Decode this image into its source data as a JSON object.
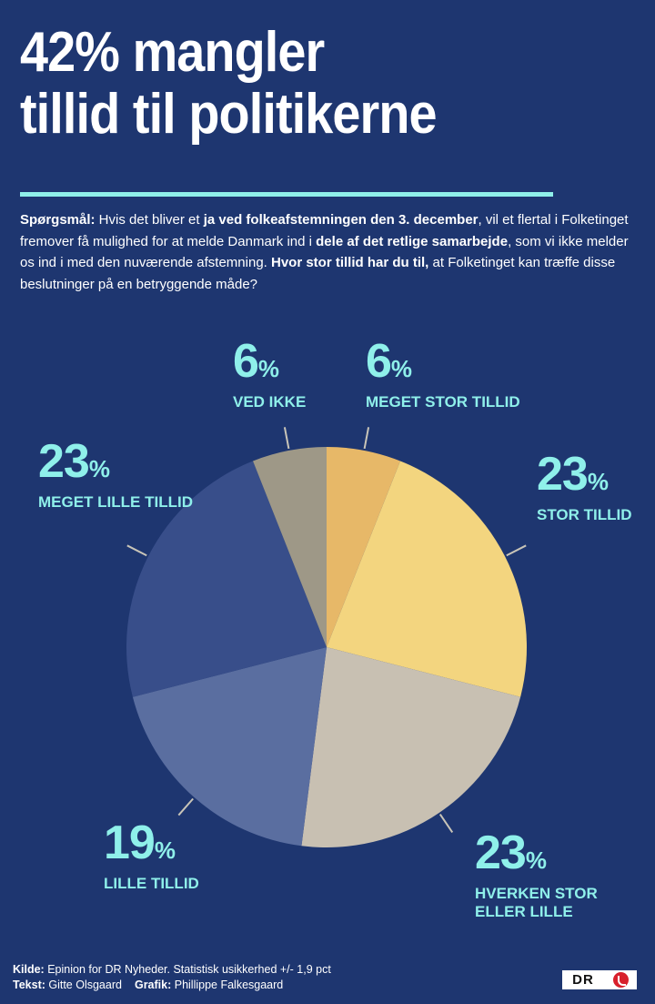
{
  "header": {
    "title_line1": "42% mangler",
    "title_line2": "tillid til politikerne",
    "question_label": "Spørgsmål:",
    "question_parts": [
      {
        "text": " Hvis det bliver et ",
        "bold": false
      },
      {
        "text": "ja ved folkeafstemningen den 3. december",
        "bold": true
      },
      {
        "text": ", vil et flertal i Folketinget fremover få mulighed for at melde Danmark ind i ",
        "bold": false
      },
      {
        "text": "dele af det retlige samarbejde",
        "bold": true
      },
      {
        "text": ", som vi ikke melder os ind i med den nuværende afstemning. ",
        "bold": false
      },
      {
        "text": "Hvor stor tillid har du til,",
        "bold": true
      },
      {
        "text": " at Folketinget kan træffe disse beslutninger på en betryggende måde?",
        "bold": false
      }
    ]
  },
  "colors": {
    "background": "#1e3670",
    "accent": "#8ff0ea",
    "leader": "#c9c5b8"
  },
  "chart_data": {
    "type": "pie",
    "title": "42% mangler tillid til politikerne",
    "unit": "%",
    "slices": [
      {
        "label": "MEGET STOR TILLID",
        "value": 6,
        "color": "#e7b868"
      },
      {
        "label": "STOR TILLID",
        "value": 23,
        "color": "#f3d57f"
      },
      {
        "label": "HVERKEN STOR ELLER LILLE",
        "value": 23,
        "color": "#c8c0b2"
      },
      {
        "label": "LILLE TILLID",
        "value": 19,
        "color": "#5a6ea0"
      },
      {
        "label": "MEGET LILLE TILLID",
        "value": 23,
        "color": "#384e8a"
      },
      {
        "label": "VED IKKE",
        "value": 6,
        "color": "#9e9887"
      }
    ],
    "slice_order": "clockwise from 12 o'clock"
  },
  "labels": [
    {
      "id": "meget-stor",
      "value": "6",
      "sign": "%",
      "lines": [
        "MEGET STOR TILLID"
      ]
    },
    {
      "id": "stor",
      "value": "23",
      "sign": "%",
      "lines": [
        "STOR TILLID"
      ]
    },
    {
      "id": "hverken",
      "value": "23",
      "sign": "%",
      "lines": [
        "HVERKEN STOR",
        "ELLER LILLE"
      ]
    },
    {
      "id": "lille",
      "value": "19",
      "sign": "%",
      "lines": [
        "LILLE TILLID"
      ]
    },
    {
      "id": "meget-lille",
      "value": "23",
      "sign": "%",
      "lines": [
        "MEGET LILLE TILLID"
      ]
    },
    {
      "id": "ved-ikke",
      "value": "6",
      "sign": "%",
      "lines": [
        "VED IKKE"
      ]
    }
  ],
  "footer": {
    "kilde_label": "Kilde:",
    "kilde_text": " Epinion for DR Nyheder. Statistisk usikkerhed +/- 1,9 pct",
    "tekst_label": "Tekst:",
    "tekst_text": " Gitte Olsgaard",
    "grafik_label": "Grafik:",
    "grafik_text": " Phillippe Falkesgaard",
    "logo_text": "DR"
  }
}
